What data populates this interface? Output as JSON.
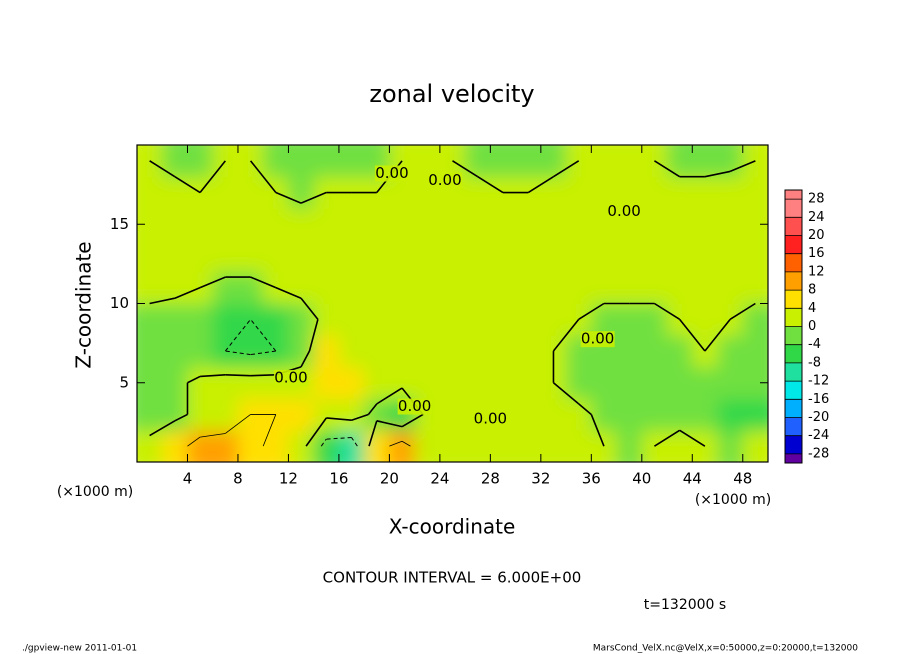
{
  "chart_data": {
    "type": "contour",
    "title": "zonal velocity",
    "xlabel": "X-coordinate",
    "ylabel": "Z-coordinate",
    "xunit": "(×1000 m)",
    "yunit": "(×1000 m)",
    "xlim": [
      0,
      50
    ],
    "ylim": [
      0,
      20
    ],
    "xticks": [
      4,
      8,
      12,
      16,
      20,
      24,
      28,
      32,
      36,
      40,
      44,
      48
    ],
    "yticks": [
      5,
      10,
      15
    ],
    "x": [
      1,
      3,
      5,
      7,
      9,
      11,
      13,
      15,
      17,
      19,
      21,
      23,
      25,
      27,
      29,
      31,
      33,
      35,
      37,
      39,
      41,
      43,
      45,
      47,
      49
    ],
    "y": [
      1,
      3,
      5,
      7,
      9,
      11,
      13,
      15,
      17,
      19
    ],
    "z": [
      [
        2,
        4,
        8,
        8,
        7,
        5,
        2,
        -8,
        -9,
        4,
        8,
        2,
        1,
        2,
        1,
        0,
        1,
        1,
        0,
        -1,
        0,
        1,
        0,
        -1,
        0
      ],
      [
        -4,
        -1,
        1,
        3,
        6,
        6,
        4,
        1,
        2,
        -1,
        -5,
        1,
        2,
        2,
        1,
        1,
        2,
        1,
        -1,
        -2,
        -1,
        -1,
        -2,
        -5,
        -5
      ],
      [
        -3,
        -1,
        1,
        2,
        2,
        2,
        2,
        5,
        6,
        2,
        1,
        2,
        2,
        3,
        2,
        1,
        0,
        -2,
        -2,
        -3,
        -2,
        -1,
        -1,
        -2,
        -2
      ],
      [
        -3,
        -1,
        -4,
        -6,
        -7,
        -6,
        -2,
        4,
        3,
        2,
        2,
        3,
        2,
        3,
        2,
        1,
        0,
        -1,
        -2,
        -2,
        -2,
        -1,
        0,
        -1,
        -1
      ],
      [
        -1,
        -2,
        -4,
        -6,
        -6,
        -5,
        -2,
        1,
        2,
        2,
        2,
        2,
        1,
        1,
        1,
        2,
        1,
        0,
        -1,
        -1,
        -1,
        0,
        0,
        0,
        -1
      ],
      [
        1,
        1,
        0,
        -1,
        -1,
        0,
        1,
        2,
        2,
        2,
        2,
        1,
        0,
        1,
        0,
        1,
        1,
        1,
        1,
        1,
        1,
        1,
        1,
        1,
        1
      ],
      [
        1,
        2,
        2,
        2,
        2,
        2,
        2,
        2,
        2,
        2,
        1,
        1,
        1,
        0,
        1,
        2,
        1,
        2,
        2,
        2,
        2,
        2,
        2,
        2,
        2
      ],
      [
        2,
        2,
        2,
        2,
        2,
        2,
        2,
        2,
        2,
        2,
        2,
        1,
        1,
        1,
        2,
        2,
        2,
        2,
        2,
        2,
        2,
        1,
        2,
        2,
        2
      ],
      [
        1,
        1,
        0,
        1,
        1,
        0,
        -1,
        0,
        0,
        0,
        1,
        1,
        1,
        1,
        0,
        0,
        1,
        1,
        2,
        2,
        1,
        1,
        1,
        2,
        2
      ],
      [
        0,
        -1,
        -1,
        0,
        0,
        -1,
        -1,
        -1,
        -1,
        -1,
        0,
        0,
        0,
        -1,
        -1,
        -1,
        -1,
        0,
        0,
        0,
        0,
        -1,
        -1,
        -1,
        0
      ]
    ],
    "contour_levels": [
      -6,
      0,
      6
    ],
    "contour_labels": [
      {
        "label": "0.00",
        "x": 20.2,
        "y": 18.2
      },
      {
        "label": "0.00",
        "x": 24.4,
        "y": 17.75
      },
      {
        "label": "0.00",
        "x": 38.6,
        "y": 15.8
      },
      {
        "label": "0.00",
        "x": 36.5,
        "y": 7.75
      },
      {
        "label": "0.00",
        "x": 12.2,
        "y": 5.3
      },
      {
        "label": "0.00",
        "x": 22,
        "y": 3.5
      },
      {
        "label": "0.00",
        "x": 28,
        "y": 2.7
      }
    ],
    "colorbar": {
      "clim": [
        -30,
        30
      ],
      "levels": [
        -28,
        -24,
        -20,
        -16,
        -12,
        -8,
        -4,
        0,
        4,
        8,
        12,
        16,
        20,
        24,
        28
      ],
      "colors": [
        "#6000a0",
        "#0000d0",
        "#2060ff",
        "#00b0ff",
        "#00e8e8",
        "#20e0a0",
        "#30d848",
        "#70e040",
        "#c8f000",
        "#ffe000",
        "#ffa000",
        "#ff6000",
        "#ff2020",
        "#ff5050",
        "#ff8080"
      ]
    },
    "contour_interval": "CONTOUR INTERVAL = 6.000E+00",
    "time": "t=132000 s",
    "footer_left": "./gpview-new  2011-01-01",
    "footer_right": "MarsCond_VelX.nc@VelX,x=0:50000,z=0:20000,t=132000"
  }
}
